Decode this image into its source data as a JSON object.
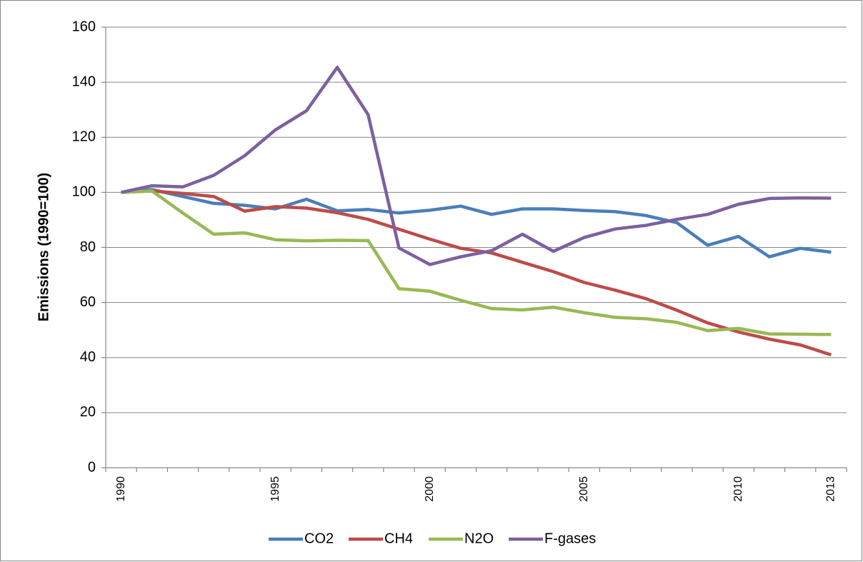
{
  "chart_data": {
    "type": "line",
    "y_label": "Emissions (1990=100)",
    "categories": [
      "1990",
      null,
      null,
      null,
      null,
      "1995",
      null,
      null,
      null,
      null,
      "2000",
      null,
      null,
      null,
      null,
      "2005",
      null,
      null,
      null,
      null,
      "2010",
      null,
      null,
      "2013"
    ],
    "series": [
      {
        "name": "CO2",
        "color": "#4a7ebb",
        "values": [
          100,
          101,
          98.5,
          96,
          95.3,
          94,
          97.5,
          93.3,
          93.8,
          92.5,
          93.5,
          95,
          92,
          94,
          94,
          93.4,
          93,
          91.6,
          89,
          80.8,
          84,
          76.6,
          79.7,
          78.3
        ]
      },
      {
        "name": "CH4",
        "color": "#be4b48",
        "values": [
          100,
          100.5,
          99.6,
          98.5,
          93.2,
          94.8,
          94.3,
          92.6,
          90.2,
          86.6,
          83,
          79.7,
          78,
          74.6,
          71.2,
          67.3,
          64.5,
          61.4,
          57.2,
          52.6,
          49.3,
          46.7,
          44.6,
          41
        ]
      },
      {
        "name": "N2O",
        "color": "#98b954",
        "values": [
          100,
          100.5,
          92.5,
          84.8,
          85.3,
          82.8,
          82.4,
          82.6,
          82.5,
          65,
          64.1,
          60.8,
          57.8,
          57.3,
          58.3,
          56.3,
          54.6,
          54.1,
          52.8,
          49.8,
          50.6,
          48.6,
          48.5,
          48.4
        ]
      },
      {
        "name": "F-gases",
        "color": "#7d60a0",
        "values": [
          100,
          102.4,
          102,
          106.2,
          113.3,
          122.7,
          129.6,
          145.4,
          128.2,
          79.8,
          73.8,
          76.6,
          78.8,
          84.8,
          78.6,
          83.6,
          86.7,
          88,
          90.2,
          92,
          95.7,
          97.8,
          98,
          97.9
        ]
      }
    ],
    "ylim": [
      0,
      160
    ],
    "yticks": [
      0,
      20,
      40,
      60,
      80,
      100,
      120,
      140,
      160
    ],
    "grid": true,
    "legend": "bottom"
  }
}
